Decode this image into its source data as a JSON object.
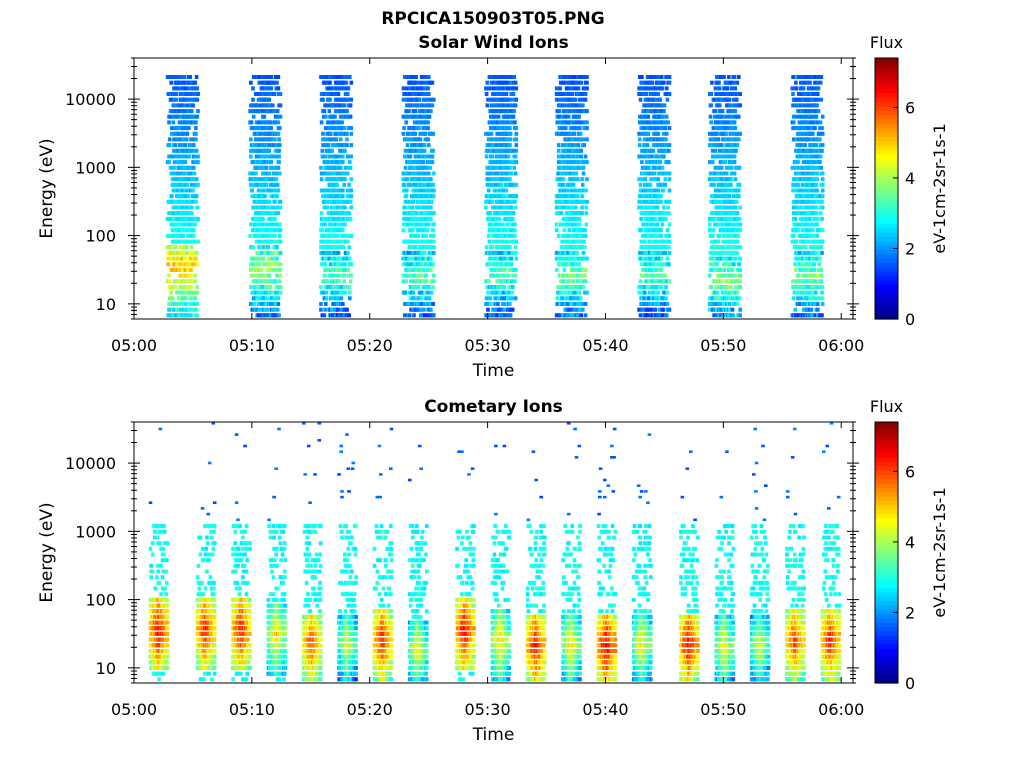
{
  "figure": {
    "filename": "RPCICA150903T05.PNG"
  },
  "chart_data": [
    {
      "type": "heatmap",
      "title": "Solar Wind Ions",
      "xlabel": "Time",
      "ylabel": "Energy (eV)",
      "x_ticks": [
        "05:00",
        "05:10",
        "05:20",
        "05:30",
        "05:40",
        "05:50",
        "06:00"
      ],
      "x_range": [
        "05:00",
        "06:01"
      ],
      "y_scale": "log",
      "y_ticks": [
        10,
        100,
        1000,
        10000
      ],
      "ylim": [
        6,
        40000
      ],
      "colorbar": {
        "title": "Flux",
        "label": "eV-1cm-2sr-1s-1",
        "ticks": [
          0,
          2,
          4,
          6
        ],
        "range": [
          0,
          7.4
        ],
        "colormap": "jet"
      },
      "sweep_period_min": 6.6,
      "bursts": [
        {
          "time": "05:04",
          "peak_energy_eV": 35,
          "peak_flux": 5.6
        },
        {
          "time": "05:11",
          "peak_energy_eV": 30,
          "peak_flux": 4.5
        },
        {
          "time": "05:17",
          "peak_energy_eV": 25,
          "peak_flux": 4.0
        },
        {
          "time": "05:24",
          "peak_energy_eV": 25,
          "peak_flux": 4.0
        },
        {
          "time": "05:31",
          "peak_energy_eV": 25,
          "peak_flux": 4.0
        },
        {
          "time": "05:37",
          "peak_energy_eV": 25,
          "peak_flux": 4.2
        },
        {
          "time": "05:44",
          "peak_energy_eV": 25,
          "peak_flux": 4.0
        },
        {
          "time": "05:50",
          "peak_energy_eV": 22,
          "peak_flux": 4.3
        },
        {
          "time": "05:57",
          "peak_energy_eV": 25,
          "peak_flux": 4.2
        }
      ]
    },
    {
      "type": "heatmap",
      "title": "Cometary Ions",
      "xlabel": "Time",
      "ylabel": "Energy (eV)",
      "x_ticks": [
        "05:00",
        "05:10",
        "05:20",
        "05:30",
        "05:40",
        "05:50",
        "06:00"
      ],
      "x_range": [
        "05:00",
        "06:01"
      ],
      "y_scale": "log",
      "y_ticks": [
        10,
        100,
        1000,
        10000
      ],
      "ylim": [
        6,
        40000
      ],
      "colorbar": {
        "title": "Flux",
        "label": "eV-1cm-2sr-1s-1",
        "ticks": [
          0,
          2,
          4,
          6
        ],
        "range": [
          0,
          7.4
        ],
        "colormap": "jet"
      },
      "sweep_period_min": 3.2,
      "bursts": [
        {
          "time": "05:02",
          "peak_energy_eV": 35,
          "peak_flux": 7.0
        },
        {
          "time": "05:06",
          "peak_energy_eV": 35,
          "peak_flux": 6.8
        },
        {
          "time": "05:09",
          "peak_energy_eV": 35,
          "peak_flux": 6.9
        },
        {
          "time": "05:12",
          "peak_energy_eV": 30,
          "peak_flux": 5.5
        },
        {
          "time": "05:15",
          "peak_energy_eV": 22,
          "peak_flux": 6.5
        },
        {
          "time": "05:18",
          "peak_energy_eV": 22,
          "peak_flux": 5.0
        },
        {
          "time": "05:21",
          "peak_energy_eV": 25,
          "peak_flux": 6.8
        },
        {
          "time": "05:24",
          "peak_energy_eV": 18,
          "peak_flux": 5.2
        },
        {
          "time": "05:28",
          "peak_energy_eV": 35,
          "peak_flux": 7.0
        },
        {
          "time": "05:31",
          "peak_energy_eV": 25,
          "peak_flux": 5.5
        },
        {
          "time": "05:34",
          "peak_energy_eV": 20,
          "peak_flux": 6.9
        },
        {
          "time": "05:37",
          "peak_energy_eV": 22,
          "peak_flux": 5.4
        },
        {
          "time": "05:40",
          "peak_energy_eV": 20,
          "peak_flux": 7.1
        },
        {
          "time": "05:43",
          "peak_energy_eV": 22,
          "peak_flux": 5.3
        },
        {
          "time": "05:47",
          "peak_energy_eV": 22,
          "peak_flux": 7.0
        },
        {
          "time": "05:50",
          "peak_energy_eV": 20,
          "peak_flux": 5.2
        },
        {
          "time": "05:53",
          "peak_energy_eV": 20,
          "peak_flux": 5.0
        },
        {
          "time": "05:56",
          "peak_energy_eV": 25,
          "peak_flux": 6.6
        },
        {
          "time": "05:59",
          "peak_energy_eV": 25,
          "peak_flux": 6.8
        }
      ]
    }
  ]
}
